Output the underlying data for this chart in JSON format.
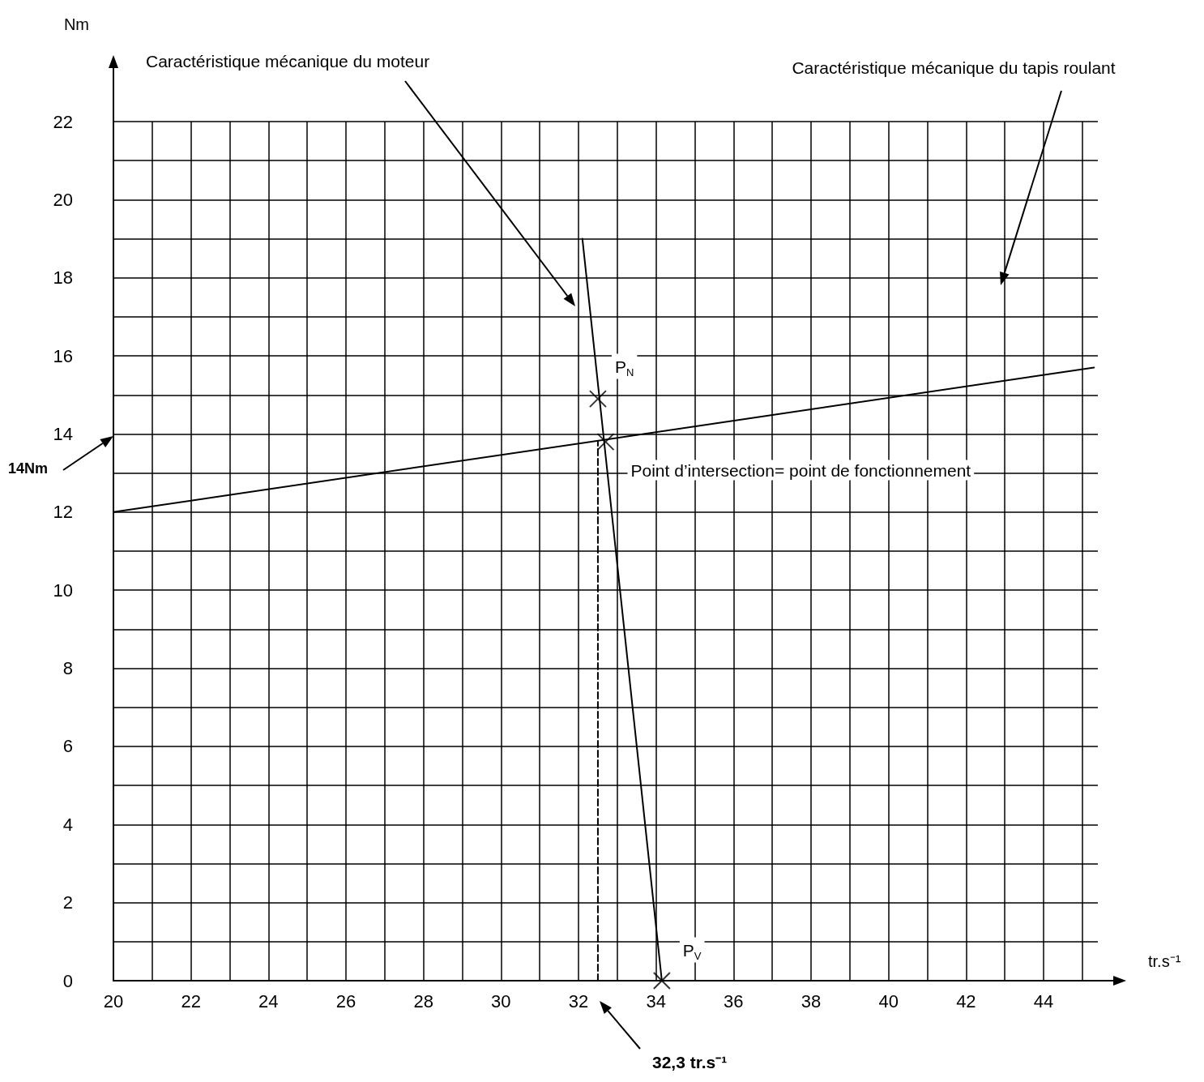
{
  "chart_data": {
    "type": "line",
    "xlabel": "tr.s⁻¹",
    "ylabel": "Nm",
    "xlim": [
      20,
      45.4
    ],
    "ylim": [
      0,
      22
    ],
    "xticks": [
      20,
      {
        "value": 21,
        "label": null
      },
      22,
      {
        "value": 23,
        "label": null
      },
      24,
      {
        "value": 25,
        "label": null
      },
      26,
      {
        "value": 27,
        "label": null
      },
      28,
      {
        "value": 29,
        "label": null
      },
      30,
      {
        "value": 31,
        "label": null
      },
      32,
      {
        "value": 33,
        "label": null
      },
      34,
      {
        "value": 35,
        "label": null
      },
      36,
      {
        "value": 37,
        "label": null
      },
      38,
      {
        "value": 39,
        "label": null
      },
      40,
      {
        "value": 41,
        "label": null
      },
      42,
      {
        "value": 43,
        "label": null
      },
      44,
      {
        "value": 45,
        "label": null
      }
    ],
    "yticks": [
      0,
      {
        "value": 1,
        "label": null
      },
      2,
      {
        "value": 3,
        "label": null
      },
      4,
      {
        "value": 5,
        "label": null
      },
      6,
      {
        "value": 7,
        "label": null
      },
      8,
      {
        "value": 9,
        "label": null
      },
      10,
      {
        "value": 11,
        "label": null
      },
      12,
      {
        "value": 13,
        "label": null
      },
      14,
      {
        "value": 15,
        "label": null
      },
      16,
      {
        "value": 17,
        "label": null
      },
      18,
      {
        "value": 19,
        "label": null
      },
      20,
      {
        "value": 21,
        "label": null
      },
      22
    ],
    "grid": true,
    "series": [
      {
        "type": "line",
        "color": "#000000",
        "x": [
          32.1,
          34.15
        ],
        "values": [
          19,
          0
        ],
        "marker": "none",
        "line_style": "solid"
      },
      {
        "type": "line",
        "color": "#000000",
        "x": [
          20,
          45.3
        ],
        "values": [
          12,
          15.7
        ],
        "marker": "none",
        "line_style": "solid"
      },
      {
        "type": "line",
        "color": "#000000",
        "x": [
          32.5,
          32.5
        ],
        "values": [
          0,
          13.8
        ],
        "marker": "none",
        "line_style": "dashed"
      },
      {
        "type": "scatter",
        "color": "#000000",
        "x": [
          32.5,
          32.7,
          34.15
        ],
        "values": [
          14.9,
          13.8,
          0
        ],
        "marker": "cross"
      }
    ],
    "annotations": [
      "Caractéristique mécanique du moteur",
      "Caractéristique mécanique du tapis roulant",
      {
        "text": "P$_{N}$",
        "x": 32.5,
        "y": 14.9
      },
      {
        "text": "Point d’intersection= point de fonctionnement",
        "x": 32.7,
        "y": 13.8
      },
      {
        "text": "P$_{V}$",
        "x": 34.15,
        "y": 0
      },
      "14Nm",
      "32,3 tr.s⁻¹"
    ]
  }
}
